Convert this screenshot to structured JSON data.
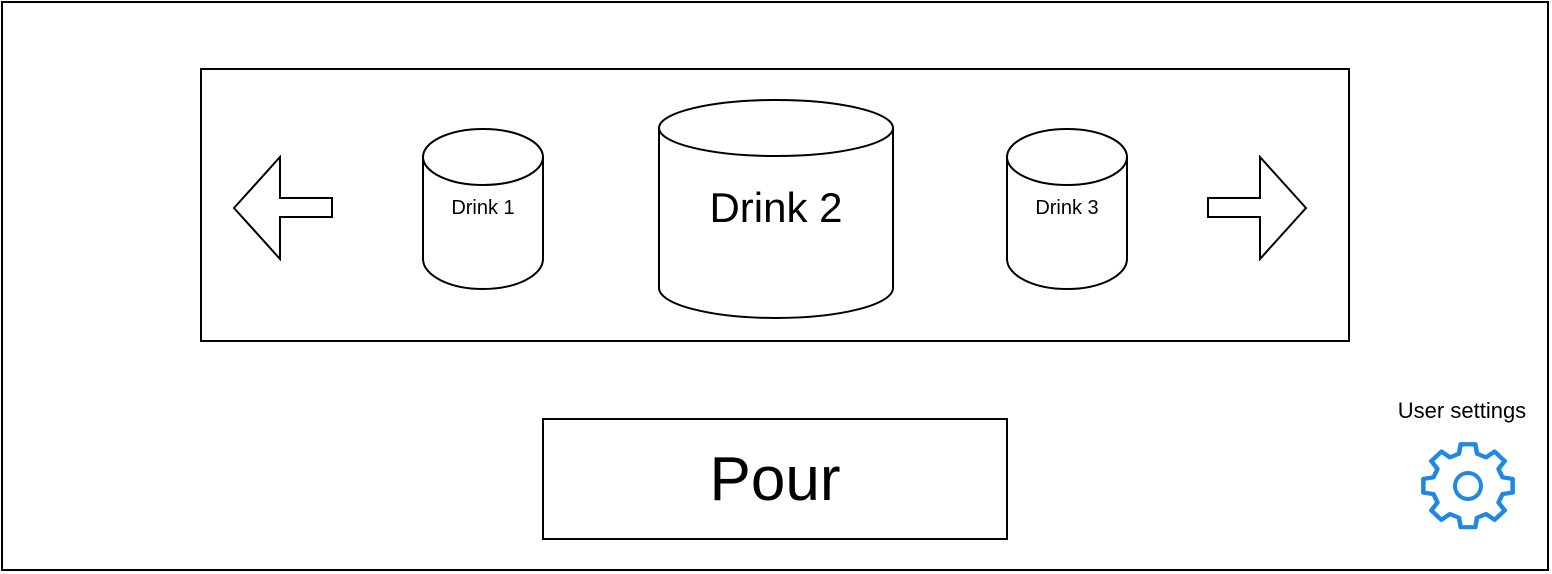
{
  "carousel": {
    "drinks": [
      {
        "label": "Drink 1"
      },
      {
        "label": "Drink 2"
      },
      {
        "label": "Drink 3"
      }
    ],
    "prev_icon": "arrow-left-icon",
    "next_icon": "arrow-right-icon"
  },
  "actions": {
    "pour_label": "Pour"
  },
  "settings": {
    "label": "User settings",
    "icon": "gear-icon",
    "icon_color": "#1E88E5"
  }
}
